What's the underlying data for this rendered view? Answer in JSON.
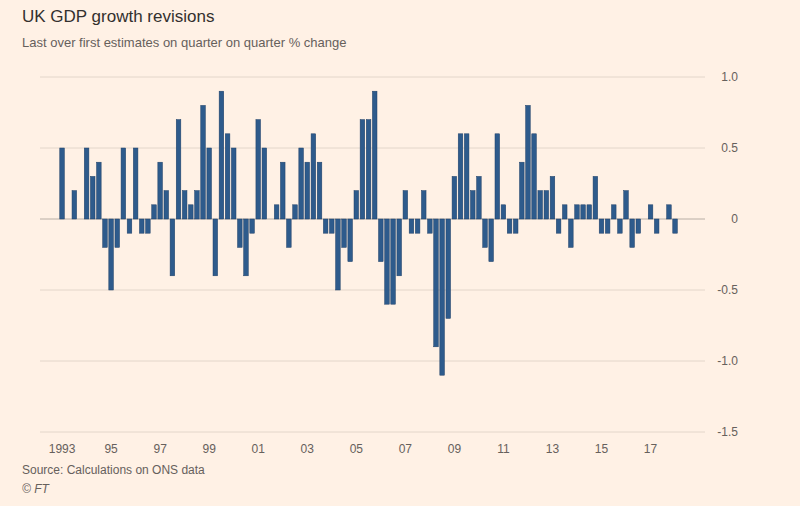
{
  "chart_data": {
    "type": "bar",
    "title": "UK GDP growth revisions",
    "subtitle": "Last over first estimates on quarter on quarter % change",
    "source": "Source: Calculations on ONS data",
    "copyright": "© FT",
    "color": "#2e5b8c",
    "grid": true,
    "ylim": [
      -1.5,
      1.0
    ],
    "yticks": [
      {
        "value": 1,
        "label": "1.0"
      },
      0.5,
      0,
      -0.5,
      {
        "value": -1,
        "label": "-1.0"
      },
      -1.5
    ],
    "categories": [
      "1993",
      null,
      null,
      null,
      null,
      null,
      null,
      null,
      "95",
      null,
      null,
      null,
      null,
      null,
      null,
      null,
      "97",
      null,
      null,
      null,
      null,
      null,
      null,
      null,
      "99",
      null,
      null,
      null,
      null,
      null,
      null,
      null,
      "01",
      null,
      null,
      null,
      null,
      null,
      null,
      null,
      "03",
      null,
      null,
      null,
      null,
      null,
      null,
      null,
      "05",
      null,
      null,
      null,
      null,
      null,
      null,
      null,
      "07",
      null,
      null,
      null,
      null,
      null,
      null,
      null,
      "09",
      null,
      null,
      null,
      null,
      null,
      null,
      null,
      "11",
      null,
      null,
      null,
      null,
      null,
      null,
      null,
      "13",
      null,
      null,
      null,
      null,
      null,
      null,
      null,
      "15",
      null,
      null,
      null,
      null,
      null,
      null,
      null,
      "17",
      null,
      null,
      null,
      null
    ],
    "values": [
      0.5,
      0,
      0.2,
      0,
      0.5,
      0.3,
      0.4,
      -0.2,
      -0.5,
      -0.2,
      0.5,
      -0.1,
      0.5,
      -0.1,
      -0.1,
      0.1,
      0.4,
      0.2,
      -0.4,
      0.7,
      0.2,
      0.1,
      0.2,
      0.8,
      0.5,
      -0.4,
      0.9,
      0.6,
      0.5,
      -0.2,
      -0.4,
      -0.1,
      0.7,
      0.5,
      0,
      0.1,
      0.4,
      -0.2,
      0.1,
      0.5,
      0.4,
      0.6,
      0.4,
      -0.1,
      -0.1,
      -0.5,
      -0.2,
      -0.3,
      0.2,
      0.7,
      0.7,
      0.9,
      -0.3,
      -0.6,
      -0.6,
      -0.4,
      0.2,
      -0.1,
      -0.1,
      0.2,
      -0.1,
      -0.9,
      -1.1,
      -0.7,
      0.3,
      0.6,
      0.6,
      0.2,
      0.3,
      -0.2,
      -0.3,
      0.6,
      0.1,
      -0.1,
      -0.1,
      0.4,
      0.8,
      0.6,
      0.2,
      0.2,
      0.3,
      -0.1,
      0.1,
      -0.2,
      0.1,
      0.1,
      0.1,
      0.3,
      -0.1,
      -0.1,
      0.1,
      -0.1,
      0.2,
      -0.2,
      -0.1,
      0,
      0.1,
      -0.1,
      0,
      0.1,
      -0.1
    ]
  }
}
